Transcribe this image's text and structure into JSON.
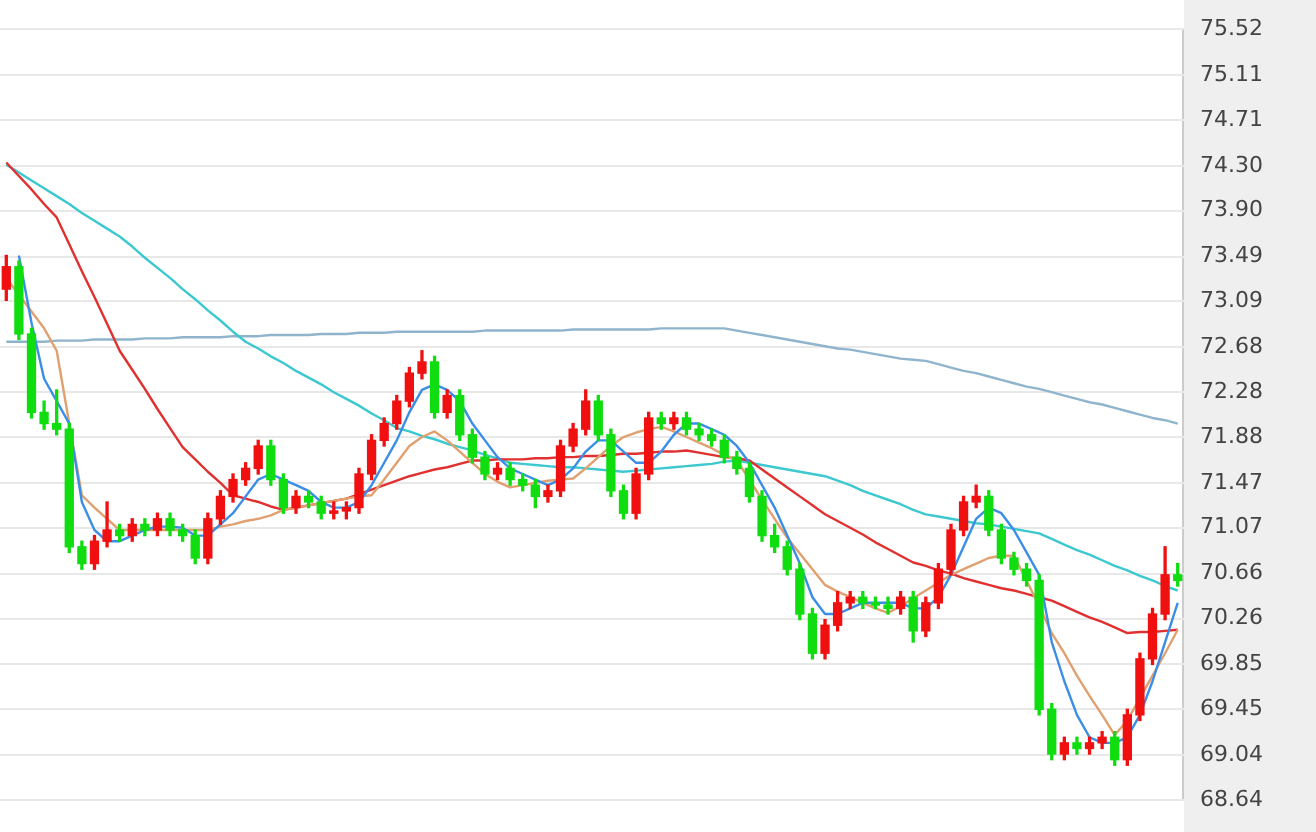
{
  "chart_data": {
    "type": "candlestick",
    "categories": [
      null,
      null,
      null,
      null,
      null,
      null,
      null,
      null,
      null,
      null,
      null,
      null,
      null,
      null,
      null,
      null,
      null,
      null,
      null,
      null,
      null,
      null,
      null,
      null,
      null,
      null,
      null,
      null,
      null,
      null,
      null,
      null,
      null,
      null,
      null,
      null,
      null,
      null,
      null,
      null,
      null,
      null,
      null,
      null,
      null,
      null,
      null,
      null,
      null,
      null,
      null,
      null,
      null,
      null,
      null,
      null,
      null,
      null,
      null,
      null,
      null,
      null,
      null,
      null,
      null,
      null,
      null,
      null,
      null,
      null,
      null,
      null,
      null,
      null,
      null,
      null,
      null,
      null,
      null,
      null,
      null,
      null,
      null,
      null,
      null,
      null,
      null,
      null,
      null,
      null,
      null,
      null,
      null,
      null
    ],
    "ohlc": [
      [
        73.2,
        73.5,
        73.1,
        73.4
      ],
      [
        73.4,
        73.45,
        72.75,
        72.8
      ],
      [
        72.8,
        72.85,
        72.05,
        72.1
      ],
      [
        72.1,
        72.2,
        71.95,
        72.0
      ],
      [
        72.0,
        72.3,
        71.9,
        71.95
      ],
      [
        71.95,
        72.0,
        70.85,
        70.9
      ],
      [
        70.9,
        70.95,
        70.7,
        70.75
      ],
      [
        70.75,
        71.0,
        70.7,
        70.95
      ],
      [
        70.95,
        71.3,
        70.9,
        71.05
      ],
      [
        71.05,
        71.1,
        70.95,
        71.0
      ],
      [
        71.0,
        71.15,
        70.95,
        71.1
      ],
      [
        71.1,
        71.15,
        71.0,
        71.05
      ],
      [
        71.05,
        71.2,
        71.0,
        71.15
      ],
      [
        71.15,
        71.2,
        71.0,
        71.05
      ],
      [
        71.05,
        71.1,
        70.95,
        71.0
      ],
      [
        71.0,
        71.05,
        70.75,
        70.8
      ],
      [
        70.8,
        71.2,
        70.75,
        71.15
      ],
      [
        71.15,
        71.4,
        71.1,
        71.35
      ],
      [
        71.35,
        71.55,
        71.3,
        71.5
      ],
      [
        71.5,
        71.65,
        71.45,
        71.6
      ],
      [
        71.6,
        71.85,
        71.55,
        71.8
      ],
      [
        71.8,
        71.85,
        71.45,
        71.5
      ],
      [
        71.5,
        71.55,
        71.2,
        71.25
      ],
      [
        71.25,
        71.4,
        71.2,
        71.35
      ],
      [
        71.35,
        71.4,
        71.25,
        71.3
      ],
      [
        71.3,
        71.35,
        71.15,
        71.2
      ],
      [
        71.2,
        71.3,
        71.15,
        71.22
      ],
      [
        71.22,
        71.3,
        71.15,
        71.25
      ],
      [
        71.25,
        71.6,
        71.2,
        71.55
      ],
      [
        71.55,
        71.9,
        71.5,
        71.85
      ],
      [
        71.85,
        72.05,
        71.8,
        72.0
      ],
      [
        72.0,
        72.25,
        71.95,
        72.2
      ],
      [
        72.2,
        72.5,
        72.15,
        72.45
      ],
      [
        72.45,
        72.65,
        72.4,
        72.55
      ],
      [
        72.55,
        72.6,
        72.05,
        72.1
      ],
      [
        72.1,
        72.3,
        72.05,
        72.25
      ],
      [
        72.25,
        72.3,
        71.85,
        71.9
      ],
      [
        71.9,
        71.95,
        71.65,
        71.7
      ],
      [
        71.7,
        71.75,
        71.5,
        71.55
      ],
      [
        71.55,
        71.65,
        71.5,
        71.6
      ],
      [
        71.6,
        71.65,
        71.45,
        71.5
      ],
      [
        71.5,
        71.55,
        71.4,
        71.45
      ],
      [
        71.45,
        71.5,
        71.25,
        71.35
      ],
      [
        71.35,
        71.45,
        71.3,
        71.4
      ],
      [
        71.4,
        71.85,
        71.35,
        71.8
      ],
      [
        71.8,
        72.0,
        71.75,
        71.95
      ],
      [
        71.95,
        72.3,
        71.9,
        72.2
      ],
      [
        72.2,
        72.25,
        71.85,
        71.9
      ],
      [
        71.9,
        71.95,
        71.35,
        71.4
      ],
      [
        71.4,
        71.45,
        71.15,
        71.2
      ],
      [
        71.2,
        71.6,
        71.15,
        71.55
      ],
      [
        71.55,
        72.1,
        71.5,
        72.05
      ],
      [
        72.05,
        72.1,
        71.95,
        72.0
      ],
      [
        72.0,
        72.1,
        71.95,
        72.05
      ],
      [
        72.05,
        72.1,
        71.9,
        71.95
      ],
      [
        71.95,
        72.0,
        71.85,
        71.9
      ],
      [
        71.9,
        71.95,
        71.8,
        71.85
      ],
      [
        71.85,
        71.9,
        71.65,
        71.7
      ],
      [
        71.7,
        71.75,
        71.55,
        71.6
      ],
      [
        71.6,
        71.65,
        71.3,
        71.35
      ],
      [
        71.35,
        71.4,
        70.95,
        71.0
      ],
      [
        71.0,
        71.1,
        70.85,
        70.9
      ],
      [
        70.9,
        70.95,
        70.65,
        70.7
      ],
      [
        70.7,
        70.75,
        70.25,
        70.3
      ],
      [
        70.3,
        70.35,
        69.9,
        69.95
      ],
      [
        69.95,
        70.25,
        69.9,
        70.2
      ],
      [
        70.2,
        70.5,
        70.15,
        70.4
      ],
      [
        70.4,
        70.5,
        70.35,
        70.45
      ],
      [
        70.45,
        70.5,
        70.35,
        70.4
      ],
      [
        70.4,
        70.45,
        70.35,
        70.38
      ],
      [
        70.38,
        70.45,
        70.3,
        70.35
      ],
      [
        70.35,
        70.5,
        70.3,
        70.45
      ],
      [
        70.45,
        70.5,
        70.05,
        70.15
      ],
      [
        70.15,
        70.45,
        70.1,
        70.4
      ],
      [
        70.4,
        70.75,
        70.35,
        70.7
      ],
      [
        70.7,
        71.1,
        70.65,
        71.05
      ],
      [
        71.05,
        71.35,
        71.0,
        71.3
      ],
      [
        71.3,
        71.45,
        71.25,
        71.35
      ],
      [
        71.35,
        71.4,
        71.0,
        71.05
      ],
      [
        71.05,
        71.1,
        70.75,
        70.8
      ],
      [
        70.8,
        70.85,
        70.65,
        70.7
      ],
      [
        70.7,
        70.75,
        70.55,
        70.6
      ],
      [
        70.6,
        70.65,
        69.4,
        69.45
      ],
      [
        69.45,
        69.5,
        69.0,
        69.05
      ],
      [
        69.05,
        69.2,
        69.0,
        69.15
      ],
      [
        69.15,
        69.2,
        69.05,
        69.1
      ],
      [
        69.1,
        69.2,
        69.05,
        69.15
      ],
      [
        69.15,
        69.25,
        69.1,
        69.2
      ],
      [
        69.2,
        69.25,
        68.95,
        69.0
      ],
      [
        69.0,
        69.45,
        68.95,
        69.4
      ],
      [
        69.4,
        69.95,
        69.35,
        69.9
      ],
      [
        69.9,
        70.35,
        69.85,
        70.3
      ],
      [
        70.3,
        70.9,
        70.25,
        70.65
      ],
      [
        70.65,
        70.75,
        70.55,
        70.6
      ]
    ],
    "colors": [
      "#f01010",
      "#10dd10",
      "#10dd10",
      "#10dd10",
      "#10dd10",
      "#10dd10",
      "#10dd10",
      "#f01010",
      "#f01010",
      "#10dd10",
      "#f01010",
      "#10dd10",
      "#f01010",
      "#10dd10",
      "#10dd10",
      "#10dd10",
      "#f01010",
      "#f01010",
      "#f01010",
      "#f01010",
      "#f01010",
      "#10dd10",
      "#10dd10",
      "#f01010",
      "#10dd10",
      "#10dd10",
      "#f01010",
      "#f01010",
      "#f01010",
      "#f01010",
      "#f01010",
      "#f01010",
      "#f01010",
      "#f01010",
      "#10dd10",
      "#f01010",
      "#10dd10",
      "#10dd10",
      "#10dd10",
      "#f01010",
      "#10dd10",
      "#10dd10",
      "#10dd10",
      "#f01010",
      "#f01010",
      "#f01010",
      "#f01010",
      "#10dd10",
      "#10dd10",
      "#10dd10",
      "#f01010",
      "#f01010",
      "#10dd10",
      "#f01010",
      "#10dd10",
      "#10dd10",
      "#10dd10",
      "#10dd10",
      "#10dd10",
      "#10dd10",
      "#10dd10",
      "#10dd10",
      "#10dd10",
      "#10dd10",
      "#10dd10",
      "#f01010",
      "#f01010",
      "#f01010",
      "#10dd10",
      "#10dd10",
      "#10dd10",
      "#f01010",
      "#10dd10",
      "#f01010",
      "#f01010",
      "#f01010",
      "#f01010",
      "#f01010",
      "#10dd10",
      "#10dd10",
      "#10dd10",
      "#10dd10",
      "#10dd10",
      "#10dd10",
      "#f01010",
      "#10dd10",
      "#f01010",
      "#f01010",
      "#10dd10",
      "#f01010",
      "#f01010",
      "#f01010",
      "#f01010",
      "#10dd10"
    ],
    "series": [
      {
        "type": "line",
        "color": "#3a8ee6",
        "values": [
          null,
          73.5,
          72.9,
          72.4,
          72.2,
          72.0,
          71.3,
          71.05,
          70.95,
          70.95,
          71.0,
          71.05,
          71.08,
          71.08,
          71.07,
          71.0,
          71.0,
          71.1,
          71.2,
          71.35,
          71.5,
          71.55,
          71.5,
          71.45,
          71.4,
          71.3,
          71.25,
          71.25,
          71.3,
          71.45,
          71.65,
          71.85,
          72.1,
          72.3,
          72.35,
          72.3,
          72.2,
          72.0,
          71.85,
          71.7,
          71.6,
          71.55,
          71.5,
          71.45,
          71.5,
          71.6,
          71.75,
          71.85,
          71.85,
          71.75,
          71.65,
          71.65,
          71.75,
          71.9,
          72.0,
          72.0,
          71.95,
          71.9,
          71.8,
          71.65,
          71.45,
          71.25,
          71.0,
          70.75,
          70.45,
          70.3,
          70.3,
          70.35,
          70.4,
          70.4,
          70.4,
          70.4,
          70.35,
          70.35,
          70.45,
          70.65,
          70.9,
          71.15,
          71.25,
          71.2,
          71.05,
          70.85,
          70.65,
          70.05,
          69.7,
          69.4,
          69.2,
          69.15,
          69.15,
          69.2,
          69.4,
          69.7,
          70.05,
          70.4
        ]
      },
      {
        "type": "line",
        "color": "#e0a070",
        "values": [
          73.3,
          73.15,
          73.0,
          72.85,
          72.65,
          72.0,
          71.36,
          71.25,
          71.15,
          71.05,
          71.05,
          71.05,
          71.05,
          71.05,
          71.05,
          71.05,
          71.05,
          71.08,
          71.1,
          71.13,
          71.15,
          71.18,
          71.23,
          71.25,
          71.27,
          71.29,
          71.31,
          71.33,
          71.35,
          71.36,
          71.5,
          71.65,
          71.8,
          71.88,
          71.93,
          71.85,
          71.75,
          71.65,
          71.55,
          71.48,
          71.43,
          71.45,
          71.47,
          71.49,
          71.5,
          71.51,
          71.6,
          71.7,
          71.8,
          71.88,
          71.92,
          71.95,
          71.97,
          71.93,
          71.88,
          71.83,
          71.78,
          71.72,
          71.67,
          71.5,
          71.32,
          71.15,
          70.98,
          70.84,
          70.7,
          70.56,
          70.5,
          70.45,
          70.4,
          70.35,
          70.31,
          70.37,
          70.44,
          70.51,
          70.58,
          70.65,
          70.7,
          70.75,
          70.8,
          70.82,
          70.82,
          70.6,
          70.37,
          70.13,
          69.95,
          69.75,
          69.57,
          69.4,
          69.22,
          69.35,
          69.55,
          69.75,
          69.95,
          70.16
        ]
      },
      {
        "type": "line",
        "color": "#e03030",
        "values": [
          74.33,
          74.21,
          74.09,
          73.96,
          73.84,
          73.6,
          73.36,
          73.13,
          72.89,
          72.65,
          72.48,
          72.31,
          72.13,
          71.96,
          71.79,
          71.68,
          71.57,
          71.47,
          71.36,
          71.33,
          71.3,
          71.26,
          71.23,
          71.25,
          71.27,
          71.29,
          71.31,
          71.33,
          71.37,
          71.41,
          71.45,
          71.49,
          71.53,
          71.56,
          71.59,
          71.61,
          71.64,
          71.67,
          71.67,
          71.68,
          71.68,
          71.68,
          71.69,
          71.69,
          71.7,
          71.7,
          71.71,
          71.71,
          71.72,
          71.73,
          71.73,
          71.74,
          71.75,
          71.75,
          71.76,
          71.74,
          71.72,
          71.7,
          71.69,
          71.67,
          71.59,
          71.51,
          71.43,
          71.35,
          71.27,
          71.19,
          71.13,
          71.07,
          71.01,
          70.94,
          70.88,
          70.82,
          70.76,
          70.73,
          70.69,
          70.66,
          70.62,
          70.59,
          70.56,
          70.53,
          70.51,
          70.48,
          70.45,
          70.42,
          70.37,
          70.32,
          70.27,
          70.23,
          70.18,
          70.13,
          70.14,
          70.14,
          70.15,
          70.16
        ]
      },
      {
        "type": "line",
        "color": "#3cc8d0",
        "values": [
          74.31,
          74.24,
          74.17,
          74.1,
          74.03,
          73.96,
          73.88,
          73.81,
          73.74,
          73.67,
          73.58,
          73.48,
          73.39,
          73.3,
          73.2,
          73.11,
          73.01,
          72.92,
          72.82,
          72.73,
          72.67,
          72.6,
          72.54,
          72.47,
          72.41,
          72.35,
          72.28,
          72.22,
          72.16,
          72.09,
          72.03,
          71.96,
          71.93,
          71.89,
          71.86,
          71.82,
          71.79,
          71.76,
          71.72,
          71.69,
          71.65,
          71.64,
          71.63,
          71.62,
          71.61,
          71.61,
          71.6,
          71.59,
          71.58,
          71.57,
          71.58,
          71.59,
          71.6,
          71.61,
          71.62,
          71.63,
          71.64,
          71.66,
          71.67,
          71.65,
          71.63,
          71.61,
          71.59,
          71.57,
          71.55,
          71.53,
          71.49,
          71.45,
          71.4,
          71.36,
          71.32,
          71.28,
          71.23,
          71.19,
          71.17,
          71.15,
          71.13,
          71.11,
          71.1,
          71.08,
          71.06,
          71.04,
          71.02,
          70.97,
          70.92,
          70.87,
          70.83,
          70.78,
          70.73,
          70.69,
          70.64,
          70.6,
          70.55,
          70.51
        ]
      },
      {
        "type": "line",
        "color": "#8fb4cc",
        "values": [
          72.73,
          72.73,
          72.73,
          72.73,
          72.74,
          72.74,
          72.74,
          72.75,
          72.75,
          72.75,
          72.75,
          72.76,
          72.76,
          72.76,
          72.77,
          72.77,
          72.77,
          72.77,
          72.78,
          72.78,
          72.78,
          72.79,
          72.79,
          72.79,
          72.79,
          72.8,
          72.8,
          72.8,
          72.81,
          72.81,
          72.81,
          72.82,
          72.82,
          72.82,
          72.82,
          72.82,
          72.82,
          72.82,
          72.83,
          72.83,
          72.83,
          72.83,
          72.83,
          72.83,
          72.83,
          72.84,
          72.84,
          72.84,
          72.84,
          72.84,
          72.84,
          72.84,
          72.85,
          72.85,
          72.85,
          72.85,
          72.85,
          72.85,
          72.83,
          72.81,
          72.79,
          72.77,
          72.75,
          72.73,
          72.71,
          72.69,
          72.67,
          72.66,
          72.64,
          72.62,
          72.6,
          72.58,
          72.57,
          72.56,
          72.53,
          72.5,
          72.47,
          72.45,
          72.42,
          72.39,
          72.36,
          72.33,
          72.31,
          72.28,
          72.25,
          72.22,
          72.19,
          72.17,
          72.14,
          72.11,
          72.08,
          72.05,
          72.03,
          72.0
        ]
      }
    ],
    "ylim": [
      68.64,
      75.52
    ],
    "yticks": [
      68.64,
      69.04,
      69.45,
      69.85,
      70.26,
      70.66,
      71.07,
      71.47,
      71.88,
      72.28,
      72.68,
      73.09,
      73.49,
      {
        "value": 73.9,
        "label": "73.90"
      },
      {
        "value": 74.3,
        "label": "74.30"
      },
      74.71,
      75.11,
      75.52
    ],
    "grid": "y",
    "tick_labels": "y",
    "legend": false
  }
}
